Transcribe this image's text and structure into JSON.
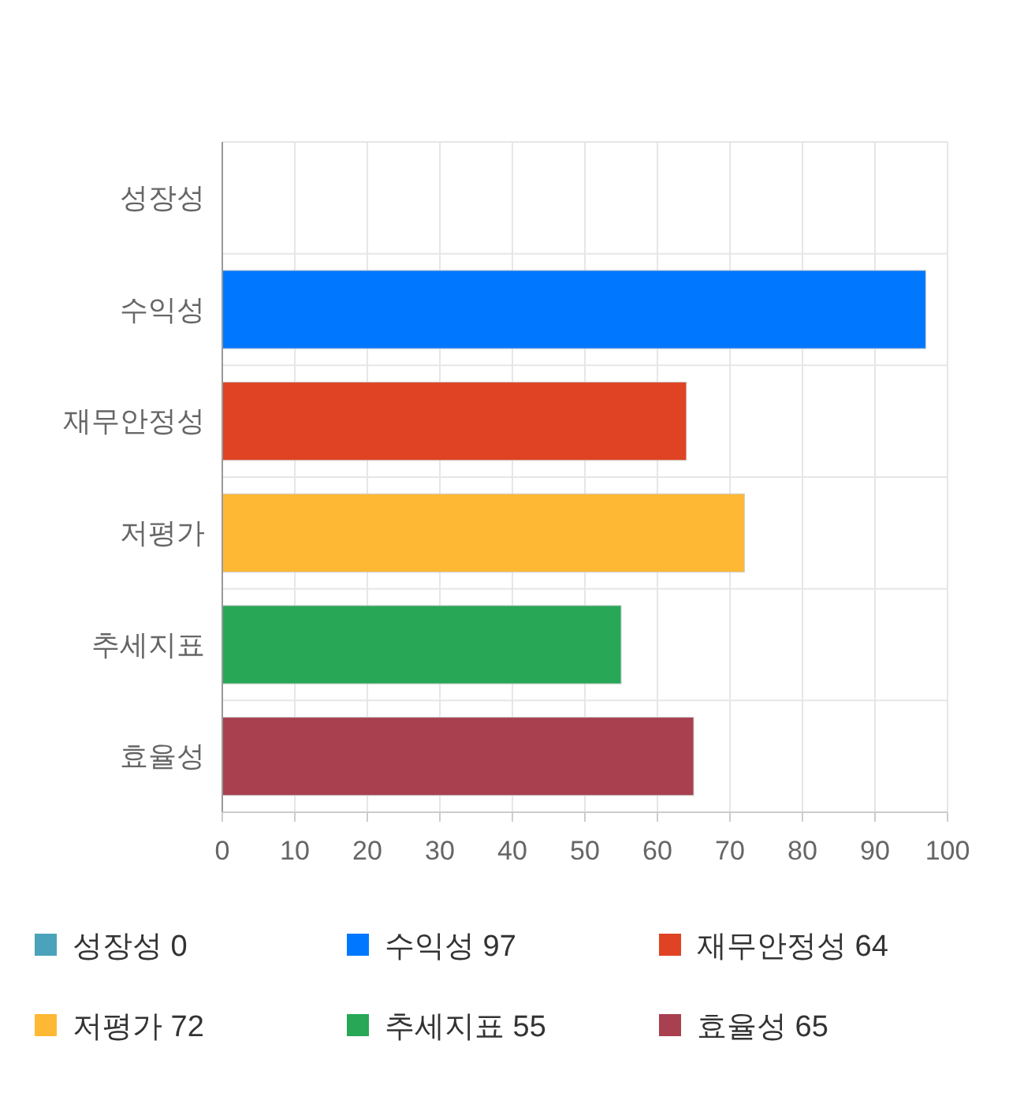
{
  "chart_data": {
    "type": "bar",
    "orientation": "horizontal",
    "categories": [
      "성장성",
      "수익성",
      "재무안정성",
      "저평가",
      "추세지표",
      "효율성"
    ],
    "series": [
      {
        "name": "성장성 0",
        "color": "#4aa3ba",
        "values": [
          0,
          null,
          null,
          null,
          null,
          null
        ]
      },
      {
        "name": "수익성 97",
        "color": "#0077ff",
        "values": [
          null,
          97,
          null,
          null,
          null,
          null
        ]
      },
      {
        "name": "재무안정성 64",
        "color": "#e04323",
        "values": [
          null,
          null,
          64,
          null,
          null,
          null
        ]
      },
      {
        "name": "저평가 72",
        "color": "#ffb833",
        "values": [
          null,
          null,
          null,
          72,
          null,
          null
        ]
      },
      {
        "name": "추세지표 55",
        "color": "#28a757",
        "values": [
          null,
          null,
          null,
          null,
          55,
          null
        ]
      },
      {
        "name": "효율성 65",
        "color": "#a8404f",
        "values": [
          null,
          null,
          null,
          null,
          null,
          65
        ]
      }
    ],
    "xlim": [
      0,
      100
    ],
    "xticks": [
      0,
      10,
      20,
      30,
      40,
      50,
      60,
      70,
      80,
      90,
      100
    ],
    "grid": true,
    "legend": "bottom"
  }
}
